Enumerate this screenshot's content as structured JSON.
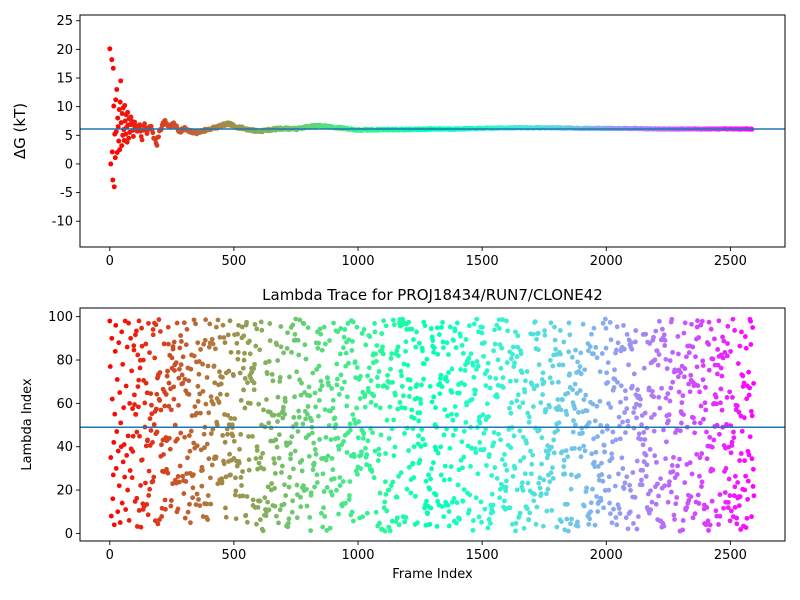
{
  "chart_data": [
    {
      "type": "scatter",
      "title": "",
      "xlabel": "",
      "ylabel": "ΔG (kT)",
      "xlim": [
        -120,
        2720
      ],
      "ylim": [
        -14.5,
        26
      ],
      "xticks": [
        0,
        500,
        1000,
        1500,
        2000,
        2500
      ],
      "yticks": [
        -10,
        -5,
        0,
        5,
        10,
        15,
        20,
        25
      ],
      "hline": 6.1,
      "colormap": "rainbow (red at frame 0 → violet at frame 2600)",
      "series": [
        {
          "points": [
            [
              0,
              20.1
            ],
            [
              4,
              0.0
            ],
            [
              8,
              18.2
            ],
            [
              10,
              2.1
            ],
            [
              12,
              -2.8
            ],
            [
              14,
              16.7
            ],
            [
              16,
              10.1
            ],
            [
              18,
              -4.0
            ],
            [
              20,
              5.2
            ],
            [
              22,
              1.1
            ],
            [
              24,
              11.2
            ],
            [
              26,
              5.6
            ],
            [
              28,
              13.0
            ],
            [
              30,
              2.0
            ],
            [
              32,
              8.0
            ],
            [
              34,
              6.5
            ],
            [
              36,
              4.0
            ],
            [
              38,
              9.5
            ],
            [
              40,
              2.5
            ],
            [
              42,
              10.8
            ],
            [
              44,
              14.5
            ],
            [
              46,
              7.2
            ],
            [
              48,
              3.2
            ],
            [
              50,
              8.8
            ],
            [
              52,
              5.0
            ],
            [
              54,
              9.8
            ],
            [
              56,
              6.0
            ],
            [
              58,
              4.1
            ],
            [
              60,
              10.2
            ],
            [
              62,
              7.5
            ],
            [
              64,
              5.2
            ],
            [
              66,
              8.6
            ],
            [
              68,
              6.4
            ],
            [
              70,
              3.8
            ],
            [
              72,
              9.0
            ],
            [
              74,
              6.8
            ],
            [
              76,
              4.5
            ],
            [
              78,
              7.9
            ],
            [
              80,
              5.5
            ],
            [
              85,
              8.2
            ],
            [
              90,
              6.9
            ],
            [
              95,
              4.8
            ],
            [
              100,
              7.3
            ],
            [
              110,
              5.7
            ],
            [
              120,
              6.5
            ],
            [
              130,
              4.6
            ],
            [
              140,
              7.0
            ],
            [
              150,
              5.2
            ],
            [
              160,
              6.6
            ],
            [
              170,
              6.1
            ],
            [
              180,
              4.2
            ],
            [
              190,
              3.5
            ],
            [
              200,
              5.8
            ],
            [
              220,
              7.4
            ],
            [
              240,
              6.5
            ],
            [
              260,
              6.9
            ],
            [
              280,
              5.7
            ],
            [
              300,
              6.2
            ],
            [
              320,
              5.6
            ],
            [
              350,
              5.5
            ],
            [
              380,
              5.8
            ],
            [
              400,
              6.1
            ],
            [
              430,
              6.4
            ],
            [
              460,
              6.8
            ],
            [
              480,
              7.0
            ],
            [
              500,
              6.6
            ],
            [
              530,
              6.3
            ],
            [
              560,
              6.0
            ],
            [
              600,
              5.7
            ],
            [
              650,
              6.0
            ],
            [
              700,
              6.2
            ],
            [
              750,
              6.1
            ],
            [
              800,
              6.5
            ],
            [
              850,
              6.7
            ],
            [
              900,
              6.4
            ],
            [
              950,
              6.2
            ],
            [
              1000,
              5.9
            ],
            [
              1100,
              6.0
            ],
            [
              1200,
              6.0
            ],
            [
              1300,
              6.1
            ],
            [
              1400,
              6.1
            ],
            [
              1500,
              6.2
            ],
            [
              1600,
              6.3
            ],
            [
              1700,
              6.3
            ],
            [
              1800,
              6.3
            ],
            [
              1900,
              6.2
            ],
            [
              2000,
              6.2
            ],
            [
              2100,
              6.2
            ],
            [
              2200,
              6.1
            ],
            [
              2300,
              6.1
            ],
            [
              2400,
              6.1
            ],
            [
              2500,
              6.1
            ],
            [
              2590,
              6.1
            ]
          ]
        }
      ]
    },
    {
      "type": "scatter",
      "title": "Lambda Trace for PROJ18434/RUN7/CLONE42",
      "xlabel": "Frame Index",
      "ylabel": "Lambda Index",
      "xlim": [
        -120,
        2720
      ],
      "ylim": [
        -3.5,
        104
      ],
      "xticks": [
        0,
        500,
        1000,
        1500,
        2000,
        2500
      ],
      "yticks": [
        0,
        20,
        40,
        60,
        80,
        100
      ],
      "hline": 49,
      "colormap": "rainbow (red at frame 0 → violet at frame 2600)",
      "series": [
        {
          "points": [
            [
              0,
              98
            ],
            [
              2,
              77
            ],
            [
              4,
              35
            ],
            [
              6,
              8
            ],
            [
              8,
              90
            ],
            [
              10,
              62
            ],
            [
              12,
              16
            ],
            [
              14,
              27
            ],
            [
              16,
              42
            ],
            [
              18,
              4
            ],
            [
              20,
              55
            ],
            [
              22,
              84
            ],
            [
              24,
              96
            ],
            [
              26,
              30
            ],
            [
              28,
              47
            ],
            [
              30,
              71
            ],
            [
              32,
              10
            ],
            [
              34,
              38
            ],
            [
              36,
              88
            ],
            [
              38,
              22
            ],
            [
              40,
              65
            ],
            [
              42,
              5
            ],
            [
              44,
              51
            ],
            [
              46,
              40
            ],
            [
              48,
              93
            ],
            [
              50,
              14
            ],
            [
              52,
              78
            ],
            [
              54,
              33
            ],
            [
              56,
              58
            ],
            [
              58,
              41
            ],
            [
              60,
              26
            ],
            [
              62,
              98
            ],
            [
              64,
              11
            ],
            [
              66,
              68
            ],
            [
              68,
              36
            ],
            [
              70,
              86
            ],
            [
              72,
              20
            ],
            [
              74,
              45
            ],
            [
              76,
              97
            ],
            [
              78,
              6
            ],
            [
              80,
              60
            ],
            [
              82,
              29
            ],
            [
              84,
              90
            ],
            [
              86,
              39
            ],
            [
              88,
              75
            ]
          ]
        }
      ]
    }
  ]
}
